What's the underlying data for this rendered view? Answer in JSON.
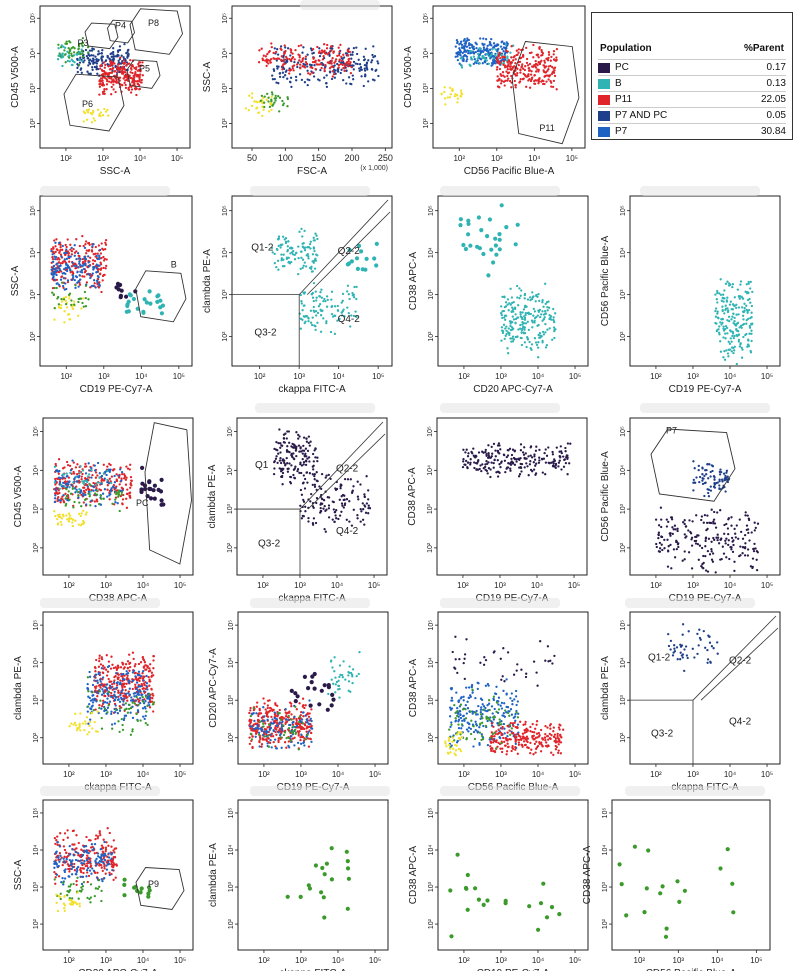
{
  "chart_data": [
    {
      "id": "p1",
      "type": "scatter",
      "xlabel": "SSC-A",
      "ylabel": "CD45 V500-A",
      "log_x": true,
      "log_y": true,
      "gates": [
        {
          "name": "P3"
        },
        {
          "name": "P4"
        },
        {
          "name": "P8"
        },
        {
          "name": "P5"
        },
        {
          "name": "P6"
        }
      ],
      "clusters": [
        {
          "pop": "P7 AND PC",
          "x": [
            200,
            5000
          ],
          "y": [
            2000,
            20000
          ],
          "n": 170
        },
        {
          "pop": "P11",
          "x": [
            800,
            12000
          ],
          "y": [
            600,
            8000
          ],
          "n": 240
        },
        {
          "pop": "B",
          "x": [
            60,
            300
          ],
          "y": [
            4000,
            20000
          ],
          "n": 40
        },
        {
          "pop": "other",
          "x": [
            60,
            400
          ],
          "y": [
            4000,
            30000
          ],
          "n": 40
        },
        {
          "pop": "yellow",
          "x": [
            300,
            1500
          ],
          "y": [
            100,
            400
          ],
          "n": 25
        }
      ]
    },
    {
      "id": "p2",
      "type": "scatter",
      "xlabel": "FSC-A",
      "ylabel": "SSC-A",
      "x_unit_note": "(x 1,000)",
      "log_y": true,
      "clusters": [
        {
          "pop": "P7 AND PC",
          "x": [
            80,
            240
          ],
          "y": [
            1000,
            20000
          ],
          "n": 220
        },
        {
          "pop": "P11",
          "x": [
            60,
            200
          ],
          "y": [
            2000,
            20000
          ],
          "n": 180
        },
        {
          "pop": "yellow",
          "x": [
            40,
            80
          ],
          "y": [
            150,
            800
          ],
          "n": 30
        },
        {
          "pop": "other",
          "x": [
            60,
            110
          ],
          "y": [
            200,
            1000
          ],
          "n": 30
        }
      ]
    },
    {
      "id": "p3",
      "type": "scatter",
      "xlabel": "CD56 Pacific Blue-A",
      "ylabel": "CD45 V500-A",
      "log_x": true,
      "log_y": true,
      "gates": [
        {
          "name": "P11"
        }
      ],
      "clusters": [
        {
          "pop": "P7",
          "x": [
            80,
            2000
          ],
          "y": [
            4000,
            30000
          ],
          "n": 230
        },
        {
          "pop": "B",
          "x": [
            100,
            3000
          ],
          "y": [
            3000,
            20000
          ],
          "n": 50
        },
        {
          "pop": "P11",
          "x": [
            1000,
            40000
          ],
          "y": [
            800,
            20000
          ],
          "n": 260
        },
        {
          "pop": "yellow",
          "x": [
            30,
            120
          ],
          "y": [
            300,
            1500
          ],
          "n": 25
        }
      ]
    },
    {
      "id": "p5",
      "type": "scatter",
      "xlabel": "CD19 PE-Cy7-A",
      "ylabel": "SSC-A",
      "log_x": true,
      "log_y": true,
      "gates": [
        {
          "name": "B"
        }
      ],
      "clusters": [
        {
          "pop": "P11",
          "x": [
            40,
            1200
          ],
          "y": [
            1000,
            30000
          ],
          "n": 220
        },
        {
          "pop": "P7",
          "x": [
            40,
            800
          ],
          "y": [
            1000,
            20000
          ],
          "n": 150
        },
        {
          "pop": "yellow",
          "x": [
            40,
            300
          ],
          "y": [
            200,
            1000
          ],
          "n": 30
        },
        {
          "pop": "other",
          "x": [
            40,
            400
          ],
          "y": [
            300,
            2000
          ],
          "n": 30
        },
        {
          "pop": "B",
          "x": [
            4000,
            40000
          ],
          "y": [
            300,
            1500
          ],
          "n": 22
        },
        {
          "pop": "PC",
          "x": [
            2000,
            8000
          ],
          "y": [
            800,
            2000
          ],
          "n": 10
        }
      ]
    },
    {
      "id": "p6",
      "type": "scatter",
      "xlabel": "ckappa FITC-A",
      "ylabel": "clambda PE-A",
      "log_x": true,
      "log_y": true,
      "quadrants": [
        "Q1-2",
        "Q2-2",
        "Q3-2",
        "Q4-2"
      ],
      "clusters": [
        {
          "pop": "B",
          "x": [
            200,
            3000
          ],
          "y": [
            3000,
            40000
          ],
          "n": 110
        },
        {
          "pop": "B",
          "x": [
            1000,
            30000
          ],
          "y": [
            100,
            2500
          ],
          "n": 110
        },
        {
          "pop": "B",
          "x": [
            15000,
            100000
          ],
          "y": [
            2000,
            20000
          ],
          "n": 14
        }
      ]
    },
    {
      "id": "p7",
      "type": "scatter",
      "xlabel": "CD20 APC-Cy7-A",
      "ylabel": "CD38 APC-A",
      "log_x": true,
      "log_y": true,
      "clusters": [
        {
          "pop": "B",
          "x": [
            1000,
            30000
          ],
          "y": [
            30,
            2000
          ],
          "n": 230
        },
        {
          "pop": "B",
          "x": [
            50,
            3000
          ],
          "y": [
            1000,
            200000
          ],
          "n": 28
        }
      ]
    },
    {
      "id": "p8",
      "type": "scatter",
      "xlabel": "CD19 PE-Cy7-A",
      "ylabel": "CD56 Pacific Blue-A",
      "log_x": true,
      "log_y": true,
      "clusters": [
        {
          "pop": "B",
          "x": [
            4000,
            40000
          ],
          "y": [
            20,
            3000
          ],
          "n": 210
        }
      ]
    },
    {
      "id": "p9",
      "type": "scatter",
      "xlabel": "CD38 APC-A",
      "ylabel": "CD45 V500-A",
      "log_x": true,
      "log_y": true,
      "gates": [
        {
          "name": "PC"
        }
      ],
      "clusters": [
        {
          "pop": "P11",
          "x": [
            40,
            5000
          ],
          "y": [
            1000,
            20000
          ],
          "n": 250
        },
        {
          "pop": "P7",
          "x": [
            40,
            3000
          ],
          "y": [
            1000,
            20000
          ],
          "n": 120
        },
        {
          "pop": "B",
          "x": [
            40,
            1500
          ],
          "y": [
            1500,
            15000
          ],
          "n": 40
        },
        {
          "pop": "other",
          "x": [
            80,
            3000
          ],
          "y": [
            800,
            5000
          ],
          "n": 40
        },
        {
          "pop": "yellow",
          "x": [
            40,
            300
          ],
          "y": [
            300,
            1000
          ],
          "n": 40
        },
        {
          "pop": "PC",
          "x": [
            8000,
            40000
          ],
          "y": [
            1000,
            15000
          ],
          "n": 22
        }
      ]
    },
    {
      "id": "p10",
      "type": "scatter",
      "xlabel": "ckappa FITC-A",
      "ylabel": "clambda PE-A",
      "log_x": true,
      "log_y": true,
      "quadrants": [
        "Q1",
        "Q2-2",
        "Q3-2",
        "Q4-2"
      ],
      "clusters": [
        {
          "pop": "PC",
          "x": [
            200,
            3000
          ],
          "y": [
            3000,
            150000
          ],
          "n": 160
        },
        {
          "pop": "PC",
          "x": [
            1000,
            80000
          ],
          "y": [
            200,
            10000
          ],
          "n": 140
        }
      ]
    },
    {
      "id": "p11",
      "type": "scatter",
      "xlabel": "CD19 PE-Cy7-A",
      "ylabel": "CD38 APC-A",
      "log_x": true,
      "log_y": true,
      "clusters": [
        {
          "pop": "PC",
          "x": [
            100,
            80000
          ],
          "y": [
            6000,
            60000
          ],
          "n": 230
        }
      ]
    },
    {
      "id": "p12",
      "type": "scatter",
      "xlabel": "CD19 PE-Cy7-A",
      "ylabel": "CD56 Pacific Blue-A",
      "log_x": true,
      "log_y": true,
      "gates": [
        {
          "name": "P7"
        }
      ],
      "clusters": [
        {
          "pop": "P7 AND PC",
          "x": [
            1000,
            10000
          ],
          "y": [
            2000,
            20000
          ],
          "n": 80
        },
        {
          "pop": "PC",
          "x": [
            100,
            60000
          ],
          "y": [
            20,
            1500
          ],
          "n": 220
        }
      ]
    },
    {
      "id": "p13",
      "type": "scatter",
      "xlabel": "ckappa FITC-A",
      "ylabel": "clambda PE-A",
      "log_x": true,
      "log_y": true,
      "clusters": [
        {
          "pop": "P11",
          "x": [
            500,
            20000
          ],
          "y": [
            400,
            20000
          ],
          "n": 300
        },
        {
          "pop": "P7",
          "x": [
            300,
            15000
          ],
          "y": [
            200,
            10000
          ],
          "n": 200
        },
        {
          "pop": "other",
          "x": [
            300,
            20000
          ],
          "y": [
            100,
            5000
          ],
          "n": 50
        },
        {
          "pop": "yellow",
          "x": [
            100,
            600
          ],
          "y": [
            100,
            600
          ],
          "n": 30
        }
      ]
    },
    {
      "id": "p14",
      "type": "scatter",
      "xlabel": "CD19 PE-Cy7-A",
      "ylabel": "CD20 APC-Cy7-A",
      "log_x": true,
      "log_y": true,
      "clusters": [
        {
          "pop": "P11",
          "x": [
            40,
            2000
          ],
          "y": [
            40,
            1200
          ],
          "n": 320
        },
        {
          "pop": "P7",
          "x": [
            40,
            2000
          ],
          "y": [
            40,
            1000
          ],
          "n": 120
        },
        {
          "pop": "other",
          "x": [
            40,
            1500
          ],
          "y": [
            40,
            800
          ],
          "n": 40
        },
        {
          "pop": "B",
          "x": [
            5000,
            40000
          ],
          "y": [
            1000,
            20000
          ],
          "n": 40
        },
        {
          "pop": "PC",
          "x": [
            500,
            8000
          ],
          "y": [
            300,
            8000
          ],
          "n": 20
        }
      ]
    },
    {
      "id": "p15",
      "type": "scatter",
      "xlabel": "CD56 Pacific Blue-A",
      "ylabel": "CD38 APC-A",
      "log_x": true,
      "log_y": true,
      "clusters": [
        {
          "pop": "P7",
          "x": [
            40,
            3000
          ],
          "y": [
            40,
            5000
          ],
          "n": 220
        },
        {
          "pop": "P11",
          "x": [
            500,
            50000
          ],
          "y": [
            30,
            300
          ],
          "n": 230
        },
        {
          "pop": "other",
          "x": [
            40,
            3000
          ],
          "y": [
            40,
            2000
          ],
          "n": 70
        },
        {
          "pop": "yellow",
          "x": [
            30,
            100
          ],
          "y": [
            30,
            200
          ],
          "n": 30
        },
        {
          "pop": "PC",
          "x": [
            40,
            30000
          ],
          "y": [
            2000,
            60000
          ],
          "n": 40
        }
      ]
    },
    {
      "id": "p16",
      "type": "scatter",
      "xlabel": "ckappa FITC-A",
      "ylabel": "clambda PE-A",
      "log_x": true,
      "log_y": true,
      "quadrants": [
        "Q1-2",
        "Q2-2",
        "Q3-2",
        "Q4-2"
      ],
      "clusters": [
        {
          "pop": "P7 AND PC",
          "x": [
            200,
            5000
          ],
          "y": [
            5000,
            150000
          ],
          "n": 50
        }
      ]
    },
    {
      "id": "p17",
      "type": "scatter",
      "xlabel": "CD20 APC-Cy7-A",
      "ylabel": "SSC-A",
      "log_x": true,
      "log_y": true,
      "gates": [
        {
          "name": "P9"
        }
      ],
      "clusters": [
        {
          "pop": "P11",
          "x": [
            40,
            2000
          ],
          "y": [
            1000,
            40000
          ],
          "n": 220
        },
        {
          "pop": "P7",
          "x": [
            40,
            1500
          ],
          "y": [
            1000,
            20000
          ],
          "n": 130
        },
        {
          "pop": "other",
          "x": [
            40,
            800
          ],
          "y": [
            300,
            2000
          ],
          "n": 40
        },
        {
          "pop": "yellow",
          "x": [
            40,
            200
          ],
          "y": [
            200,
            800
          ],
          "n": 25
        },
        {
          "pop": "other",
          "x": [
            3000,
            20000
          ],
          "y": [
            300,
            2000
          ],
          "n": 12
        }
      ]
    },
    {
      "id": "p18",
      "type": "scatter",
      "xlabel": "ckappa FITC-A",
      "ylabel": "clambda PE-A",
      "log_x": true,
      "log_y": true,
      "clusters": [
        {
          "pop": "other",
          "x": [
            400,
            20000
          ],
          "y": [
            100,
            20000
          ],
          "n": 18
        }
      ]
    },
    {
      "id": "p19",
      "type": "scatter",
      "xlabel": "CD19 PE-Cy7-A",
      "ylabel": "CD38 APC-A",
      "log_x": true,
      "log_y": true,
      "clusters": [
        {
          "pop": "other",
          "x": [
            40,
            50000
          ],
          "y": [
            30,
            20000
          ],
          "n": 20
        }
      ]
    },
    {
      "id": "p20",
      "type": "scatter",
      "xlabel": "CD56 Pacific Blue-A",
      "ylabel": "CD38 APC-A",
      "log_x": true,
      "log_y": true,
      "clusters": [
        {
          "pop": "other",
          "x": [
            30,
            30000
          ],
          "y": [
            30,
            20000
          ],
          "n": 18
        }
      ]
    }
  ],
  "legend": {
    "header_population": "Population",
    "header_parent": "%Parent",
    "rows": [
      {
        "name": "PC",
        "value": "0.17",
        "color": "#2a1a4a"
      },
      {
        "name": "B",
        "value": "0.13",
        "color": "#2fb3b3"
      },
      {
        "name": "P11",
        "value": "22.05",
        "color": "#e0242a"
      },
      {
        "name": "P7 AND PC",
        "value": "0.05",
        "color": "#1f3f8a"
      },
      {
        "name": "P7",
        "value": "30.84",
        "color": "#2060c0"
      }
    ]
  },
  "colors": {
    "PC": "#2a1a4a",
    "B": "#2fb3b3",
    "P11": "#e0242a",
    "P7 AND PC": "#1f3f8a",
    "P7": "#1e62c4",
    "other": "#3a9a2a",
    "yellow": "#f2e02a"
  },
  "tick_labels": {
    "log": [
      "10²",
      "10³",
      "10⁴",
      "10⁵"
    ],
    "ylog": [
      "10²",
      "10³",
      "10⁴",
      "10⁵"
    ],
    "fsc": [
      "50",
      "100",
      "150",
      "200",
      "250"
    ]
  }
}
